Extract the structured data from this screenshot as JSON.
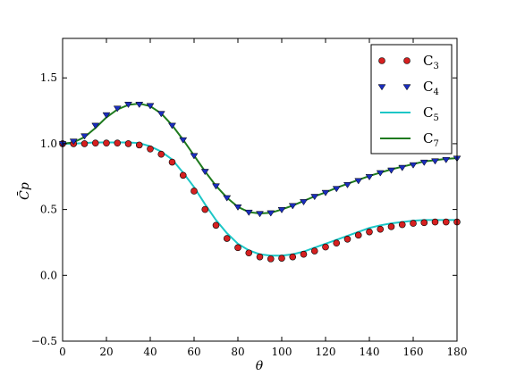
{
  "chart_data": {
    "type": "line",
    "title": "",
    "xlabel": "θ",
    "ylabel": "C̄p",
    "xlim": [
      0,
      180
    ],
    "ylim": [
      -0.5,
      1.8
    ],
    "xticks": [
      "0",
      "20",
      "40",
      "60",
      "80",
      "100",
      "120",
      "140",
      "160",
      "180"
    ],
    "yticks": [
      "−0.5",
      "0.0",
      "0.5",
      "1.0",
      "1.5"
    ],
    "grid": false,
    "legend_position": "top-right",
    "series": [
      {
        "name": "C3",
        "label_base": "C",
        "label_sub": "3",
        "style": "markers",
        "marker": "circle",
        "color": "#d62020",
        "x": [
          0,
          5,
          10,
          15,
          20,
          25,
          30,
          35,
          40,
          45,
          50,
          55,
          60,
          65,
          70,
          75,
          80,
          85,
          90,
          95,
          100,
          105,
          110,
          115,
          120,
          125,
          130,
          135,
          140,
          145,
          150,
          155,
          160,
          165,
          170,
          175,
          180
        ],
        "y": [
          1.0,
          1.0,
          1.0,
          1.005,
          1.005,
          1.005,
          1.0,
          0.99,
          0.96,
          0.92,
          0.86,
          0.76,
          0.64,
          0.5,
          0.38,
          0.28,
          0.21,
          0.17,
          0.14,
          0.125,
          0.13,
          0.14,
          0.16,
          0.185,
          0.215,
          0.245,
          0.275,
          0.305,
          0.33,
          0.35,
          0.37,
          0.385,
          0.395,
          0.4,
          0.405,
          0.405,
          0.405
        ]
      },
      {
        "name": "C4",
        "label_base": "C",
        "label_sub": "4",
        "style": "markers",
        "marker": "triangle-down",
        "color": "#1a2dbd",
        "x": [
          0,
          5,
          10,
          15,
          20,
          25,
          30,
          35,
          40,
          45,
          50,
          55,
          60,
          65,
          70,
          75,
          80,
          85,
          90,
          95,
          100,
          105,
          110,
          115,
          120,
          125,
          130,
          135,
          140,
          145,
          150,
          155,
          160,
          165,
          170,
          175,
          180
        ],
        "y": [
          1.0,
          1.02,
          1.06,
          1.14,
          1.22,
          1.27,
          1.3,
          1.3,
          1.29,
          1.23,
          1.14,
          1.03,
          0.91,
          0.79,
          0.68,
          0.59,
          0.52,
          0.48,
          0.47,
          0.475,
          0.5,
          0.53,
          0.56,
          0.6,
          0.63,
          0.66,
          0.69,
          0.72,
          0.75,
          0.78,
          0.8,
          0.82,
          0.84,
          0.86,
          0.87,
          0.88,
          0.89
        ]
      },
      {
        "name": "C5",
        "label_base": "C",
        "label_sub": "5",
        "style": "line",
        "color": "#1cc6c6",
        "x": [
          0,
          5,
          10,
          15,
          20,
          25,
          30,
          35,
          40,
          45,
          50,
          55,
          60,
          65,
          70,
          75,
          80,
          85,
          90,
          95,
          100,
          105,
          110,
          115,
          120,
          125,
          130,
          135,
          140,
          145,
          150,
          155,
          160,
          165,
          170,
          175,
          180
        ],
        "y": [
          1.0,
          1.0,
          1.005,
          1.01,
          1.01,
          1.01,
          1.01,
          1.005,
          0.98,
          0.94,
          0.88,
          0.78,
          0.67,
          0.54,
          0.42,
          0.32,
          0.24,
          0.19,
          0.16,
          0.15,
          0.15,
          0.16,
          0.18,
          0.21,
          0.24,
          0.27,
          0.3,
          0.33,
          0.36,
          0.38,
          0.395,
          0.405,
          0.415,
          0.42,
          0.42,
          0.42,
          0.42
        ]
      },
      {
        "name": "C7",
        "label_base": "C",
        "label_sub": "7",
        "style": "line",
        "color": "#1e7a1e",
        "x": [
          0,
          5,
          10,
          15,
          20,
          25,
          30,
          35,
          40,
          45,
          50,
          55,
          60,
          65,
          70,
          75,
          80,
          85,
          90,
          95,
          100,
          105,
          110,
          115,
          120,
          125,
          130,
          135,
          140,
          145,
          150,
          155,
          160,
          165,
          170,
          175,
          180
        ],
        "y": [
          1.0,
          1.01,
          1.05,
          1.12,
          1.2,
          1.26,
          1.295,
          1.305,
          1.285,
          1.23,
          1.14,
          1.03,
          0.91,
          0.79,
          0.68,
          0.59,
          0.52,
          0.48,
          0.47,
          0.475,
          0.5,
          0.53,
          0.565,
          0.6,
          0.63,
          0.665,
          0.695,
          0.725,
          0.755,
          0.78,
          0.805,
          0.825,
          0.845,
          0.865,
          0.875,
          0.885,
          0.89
        ]
      }
    ]
  }
}
